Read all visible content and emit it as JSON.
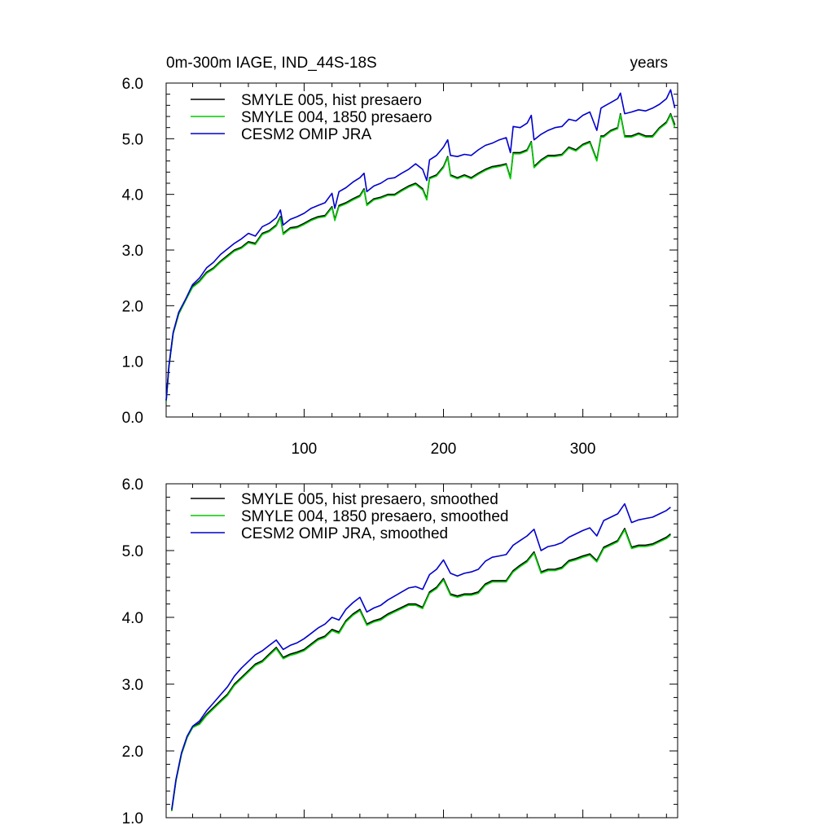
{
  "chart_data": [
    {
      "type": "line",
      "title": "0m-300m IAGE, IND_44S-18S",
      "units_label": "years",
      "xlim": [
        1,
        368
      ],
      "ylim": [
        0.0,
        6.0
      ],
      "xticks": [
        100,
        200,
        300
      ],
      "xtick_labels": [
        "100",
        "200",
        "300"
      ],
      "yticks": [
        0.0,
        1.0,
        2.0,
        3.0,
        4.0,
        5.0,
        6.0
      ],
      "ytick_labels": [
        "0.0",
        "1.0",
        "2.0",
        "3.0",
        "4.0",
        "5.0",
        "6.0"
      ],
      "legend_position": "top-left",
      "series": [
        {
          "name": "SMYLE 005, hist presaero",
          "color": "#000000",
          "x": [
            1,
            3,
            6,
            10,
            15,
            20,
            25,
            30,
            35,
            40,
            45,
            50,
            55,
            60,
            65,
            70,
            75,
            80,
            83,
            85,
            90,
            95,
            100,
            105,
            110,
            115,
            120,
            122,
            125,
            130,
            135,
            140,
            143,
            145,
            150,
            155,
            160,
            165,
            170,
            175,
            180,
            185,
            188,
            190,
            195,
            200,
            203,
            205,
            210,
            215,
            220,
            225,
            230,
            235,
            240,
            245,
            248,
            250,
            255,
            260,
            263,
            265,
            270,
            275,
            280,
            285,
            290,
            295,
            300,
            305,
            310,
            313,
            315,
            320,
            325,
            327,
            330,
            335,
            340,
            345,
            350,
            355,
            360,
            363,
            366
          ],
          "y": [
            0.28,
            0.9,
            1.5,
            1.85,
            2.1,
            2.35,
            2.45,
            2.6,
            2.68,
            2.8,
            2.9,
            3.0,
            3.05,
            3.15,
            3.12,
            3.3,
            3.35,
            3.45,
            3.6,
            3.3,
            3.4,
            3.42,
            3.48,
            3.55,
            3.6,
            3.62,
            3.78,
            3.55,
            3.8,
            3.85,
            3.92,
            3.98,
            4.1,
            3.82,
            3.92,
            3.95,
            4.0,
            4.0,
            4.08,
            4.15,
            4.2,
            4.1,
            3.92,
            4.3,
            4.35,
            4.5,
            4.68,
            4.35,
            4.3,
            4.35,
            4.3,
            4.38,
            4.45,
            4.5,
            4.52,
            4.55,
            4.3,
            4.75,
            4.75,
            4.8,
            4.95,
            4.5,
            4.62,
            4.7,
            4.7,
            4.72,
            4.85,
            4.8,
            4.9,
            4.95,
            4.62,
            5.05,
            5.05,
            5.15,
            5.2,
            5.45,
            5.05,
            5.05,
            5.1,
            5.05,
            5.05,
            5.2,
            5.3,
            5.45,
            5.25
          ]
        },
        {
          "name": "SMYLE 004, 1850 presaero",
          "color": "#00cc00",
          "x": [
            1,
            3,
            6,
            10,
            15,
            20,
            25,
            30,
            35,
            40,
            45,
            50,
            55,
            60,
            65,
            70,
            75,
            80,
            83,
            85,
            90,
            95,
            100,
            105,
            110,
            115,
            120,
            122,
            125,
            130,
            135,
            140,
            143,
            145,
            150,
            155,
            160,
            165,
            170,
            175,
            180,
            185,
            188,
            190,
            195,
            200,
            203,
            205,
            210,
            215,
            220,
            225,
            230,
            235,
            240,
            245,
            248,
            250,
            255,
            260,
            263,
            265,
            270,
            275,
            280,
            285,
            290,
            295,
            300,
            305,
            310,
            313,
            315,
            320,
            325,
            327,
            330,
            335,
            340,
            345,
            350,
            355,
            360,
            363,
            366
          ],
          "y": [
            0.28,
            0.9,
            1.5,
            1.85,
            2.1,
            2.33,
            2.43,
            2.58,
            2.66,
            2.78,
            2.88,
            2.98,
            3.03,
            3.13,
            3.1,
            3.28,
            3.33,
            3.43,
            3.58,
            3.28,
            3.38,
            3.4,
            3.46,
            3.53,
            3.58,
            3.6,
            3.76,
            3.53,
            3.78,
            3.83,
            3.9,
            3.96,
            4.08,
            3.8,
            3.9,
            3.93,
            3.98,
            3.98,
            4.06,
            4.13,
            4.18,
            4.08,
            3.9,
            4.28,
            4.33,
            4.48,
            4.66,
            4.33,
            4.28,
            4.33,
            4.28,
            4.36,
            4.43,
            4.48,
            4.5,
            4.53,
            4.28,
            4.73,
            4.73,
            4.78,
            4.93,
            4.48,
            4.6,
            4.68,
            4.68,
            4.7,
            4.83,
            4.78,
            4.88,
            4.93,
            4.6,
            5.03,
            5.03,
            5.13,
            5.18,
            5.43,
            5.03,
            5.03,
            5.08,
            5.03,
            5.03,
            5.18,
            5.28,
            5.43,
            5.2
          ]
        },
        {
          "name": "CESM2 OMIP JRA",
          "color": "#0000cc",
          "x": [
            1,
            3,
            6,
            10,
            15,
            20,
            25,
            30,
            35,
            40,
            45,
            50,
            55,
            60,
            65,
            70,
            75,
            80,
            83,
            85,
            90,
            95,
            100,
            105,
            110,
            115,
            120,
            122,
            125,
            130,
            135,
            140,
            143,
            145,
            150,
            155,
            160,
            165,
            170,
            175,
            180,
            185,
            188,
            190,
            195,
            200,
            203,
            205,
            210,
            215,
            220,
            225,
            230,
            235,
            240,
            245,
            248,
            250,
            255,
            260,
            263,
            265,
            270,
            275,
            280,
            285,
            290,
            295,
            300,
            305,
            310,
            313,
            315,
            320,
            325,
            327,
            330,
            335,
            340,
            345,
            350,
            355,
            360,
            363,
            366
          ],
          "y": [
            0.3,
            0.92,
            1.52,
            1.88,
            2.12,
            2.38,
            2.5,
            2.68,
            2.78,
            2.92,
            3.02,
            3.12,
            3.2,
            3.3,
            3.25,
            3.42,
            3.48,
            3.58,
            3.72,
            3.45,
            3.55,
            3.6,
            3.66,
            3.75,
            3.8,
            3.85,
            4.02,
            3.75,
            4.05,
            4.12,
            4.22,
            4.3,
            4.38,
            4.05,
            4.15,
            4.2,
            4.28,
            4.3,
            4.38,
            4.45,
            4.55,
            4.45,
            4.25,
            4.62,
            4.7,
            4.85,
            4.98,
            4.7,
            4.68,
            4.72,
            4.7,
            4.8,
            4.88,
            4.92,
            4.98,
            5.02,
            4.75,
            5.22,
            5.2,
            5.28,
            5.42,
            4.98,
            5.08,
            5.15,
            5.2,
            5.22,
            5.35,
            5.32,
            5.42,
            5.48,
            5.15,
            5.55,
            5.58,
            5.65,
            5.72,
            5.82,
            5.45,
            5.48,
            5.52,
            5.5,
            5.55,
            5.62,
            5.72,
            5.88,
            5.55
          ]
        }
      ]
    },
    {
      "type": "line",
      "title": "",
      "xlim": [
        1,
        368
      ],
      "ylim": [
        1.0,
        6.0
      ],
      "xticks": [
        100,
        200,
        300
      ],
      "xtick_labels": [],
      "yticks": [
        1.0,
        2.0,
        3.0,
        4.0,
        5.0,
        6.0
      ],
      "ytick_labels": [
        "1.0",
        "2.0",
        "3.0",
        "4.0",
        "5.0",
        "6.0"
      ],
      "legend_position": "top-left",
      "series": [
        {
          "name": "SMYLE 005, hist presaero, smoothed",
          "color": "#000000",
          "x": [
            5,
            8,
            12,
            16,
            20,
            25,
            30,
            35,
            40,
            45,
            50,
            55,
            60,
            65,
            70,
            75,
            80,
            85,
            90,
            95,
            100,
            105,
            110,
            115,
            120,
            125,
            130,
            135,
            140,
            145,
            150,
            155,
            160,
            165,
            170,
            175,
            180,
            185,
            190,
            195,
            200,
            205,
            210,
            215,
            220,
            225,
            230,
            235,
            240,
            245,
            250,
            255,
            260,
            265,
            270,
            275,
            280,
            285,
            290,
            295,
            300,
            305,
            310,
            315,
            320,
            325,
            330,
            335,
            340,
            345,
            350,
            355,
            360,
            363
          ],
          "y": [
            1.1,
            1.55,
            1.95,
            2.2,
            2.35,
            2.42,
            2.55,
            2.65,
            2.75,
            2.85,
            3.0,
            3.1,
            3.2,
            3.3,
            3.35,
            3.45,
            3.55,
            3.4,
            3.45,
            3.48,
            3.52,
            3.6,
            3.68,
            3.72,
            3.82,
            3.78,
            3.95,
            4.05,
            4.12,
            3.9,
            3.95,
            3.98,
            4.05,
            4.1,
            4.15,
            4.2,
            4.2,
            4.15,
            4.38,
            4.45,
            4.58,
            4.35,
            4.32,
            4.35,
            4.35,
            4.38,
            4.5,
            4.55,
            4.55,
            4.55,
            4.7,
            4.78,
            4.85,
            4.98,
            4.68,
            4.72,
            4.72,
            4.75,
            4.85,
            4.88,
            4.92,
            4.95,
            4.85,
            5.05,
            5.1,
            5.15,
            5.33,
            5.05,
            5.08,
            5.08,
            5.1,
            5.15,
            5.2,
            5.25
          ]
        },
        {
          "name": "SMYLE 004, 1850 presaero, smoothed",
          "color": "#00cc00",
          "x": [
            5,
            8,
            12,
            16,
            20,
            25,
            30,
            35,
            40,
            45,
            50,
            55,
            60,
            65,
            70,
            75,
            80,
            85,
            90,
            95,
            100,
            105,
            110,
            115,
            120,
            125,
            130,
            135,
            140,
            145,
            150,
            155,
            160,
            165,
            170,
            175,
            180,
            185,
            190,
            195,
            200,
            205,
            210,
            215,
            220,
            225,
            230,
            235,
            240,
            245,
            250,
            255,
            260,
            265,
            270,
            275,
            280,
            285,
            290,
            295,
            300,
            305,
            310,
            315,
            320,
            325,
            330,
            335,
            340,
            345,
            350,
            355,
            360,
            363
          ],
          "y": [
            1.1,
            1.55,
            1.95,
            2.2,
            2.35,
            2.4,
            2.53,
            2.63,
            2.73,
            2.83,
            2.98,
            3.08,
            3.18,
            3.28,
            3.33,
            3.43,
            3.53,
            3.38,
            3.43,
            3.46,
            3.5,
            3.58,
            3.66,
            3.7,
            3.8,
            3.76,
            3.93,
            4.03,
            4.1,
            3.88,
            3.93,
            3.96,
            4.03,
            4.08,
            4.13,
            4.18,
            4.18,
            4.13,
            4.36,
            4.43,
            4.56,
            4.33,
            4.3,
            4.33,
            4.33,
            4.36,
            4.48,
            4.53,
            4.53,
            4.53,
            4.68,
            4.76,
            4.83,
            4.96,
            4.66,
            4.7,
            4.7,
            4.73,
            4.83,
            4.86,
            4.9,
            4.93,
            4.83,
            5.03,
            5.08,
            5.13,
            5.31,
            5.03,
            5.06,
            5.06,
            5.08,
            5.13,
            5.18,
            5.23
          ]
        },
        {
          "name": "CESM2 OMIP JRA, smoothed",
          "color": "#0000cc",
          "x": [
            5,
            8,
            12,
            16,
            20,
            25,
            30,
            35,
            40,
            45,
            50,
            55,
            60,
            65,
            70,
            75,
            80,
            85,
            90,
            95,
            100,
            105,
            110,
            115,
            120,
            125,
            130,
            135,
            140,
            145,
            150,
            155,
            160,
            165,
            170,
            175,
            180,
            185,
            190,
            195,
            200,
            205,
            210,
            215,
            220,
            225,
            230,
            235,
            240,
            245,
            250,
            255,
            260,
            265,
            270,
            275,
            280,
            285,
            290,
            295,
            300,
            305,
            310,
            315,
            320,
            325,
            330,
            335,
            340,
            345,
            350,
            355,
            360,
            363
          ],
          "y": [
            1.12,
            1.57,
            1.97,
            2.22,
            2.37,
            2.45,
            2.6,
            2.72,
            2.84,
            2.96,
            3.12,
            3.24,
            3.34,
            3.44,
            3.5,
            3.58,
            3.66,
            3.52,
            3.58,
            3.62,
            3.68,
            3.76,
            3.84,
            3.9,
            4.0,
            3.96,
            4.12,
            4.22,
            4.3,
            4.08,
            4.14,
            4.18,
            4.26,
            4.32,
            4.38,
            4.44,
            4.46,
            4.42,
            4.64,
            4.72,
            4.86,
            4.66,
            4.62,
            4.66,
            4.68,
            4.72,
            4.84,
            4.9,
            4.92,
            4.94,
            5.08,
            5.15,
            5.22,
            5.32,
            5.0,
            5.06,
            5.08,
            5.12,
            5.2,
            5.25,
            5.3,
            5.34,
            5.22,
            5.45,
            5.5,
            5.55,
            5.7,
            5.42,
            5.46,
            5.48,
            5.5,
            5.55,
            5.6,
            5.65
          ]
        }
      ]
    }
  ]
}
